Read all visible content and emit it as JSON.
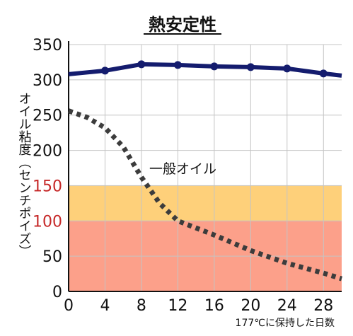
{
  "chart_data": {
    "type": "line",
    "title": "熱安定性",
    "ylabel": "オイル粘度（センチポイズ）",
    "xlabel": "177℃に保持した日数",
    "xlim": [
      0,
      30
    ],
    "ylim": [
      0,
      350
    ],
    "xticks": [
      0,
      4,
      8,
      12,
      16,
      20,
      24,
      28
    ],
    "yticks": [
      0,
      50,
      100,
      150,
      200,
      250,
      300,
      350
    ],
    "ytick_colors": {
      "100": "#c62828",
      "150": "#c62828"
    },
    "grid": true,
    "bands": [
      {
        "from": 0,
        "to": 100,
        "color": "#fca08a"
      },
      {
        "from": 100,
        "to": 150,
        "color": "#fed07a"
      }
    ],
    "series": [
      {
        "name": "",
        "style": "solid-markers",
        "color": "#141c6e",
        "x": [
          0,
          4,
          8,
          12,
          16,
          20,
          24,
          28,
          30
        ],
        "y": [
          308,
          313,
          322,
          321,
          319,
          318,
          316,
          309,
          306
        ]
      },
      {
        "name": "一般オイル",
        "style": "dotted",
        "color": "#3c3c3c",
        "x": [
          0,
          2,
          4,
          6,
          8,
          10,
          12,
          16,
          20,
          24,
          28,
          30
        ],
        "y": [
          256,
          247,
          232,
          205,
          162,
          125,
          100,
          80,
          58,
          40,
          26,
          18
        ]
      }
    ],
    "annotations": [
      {
        "text": "一般オイル",
        "series": 1
      }
    ]
  }
}
